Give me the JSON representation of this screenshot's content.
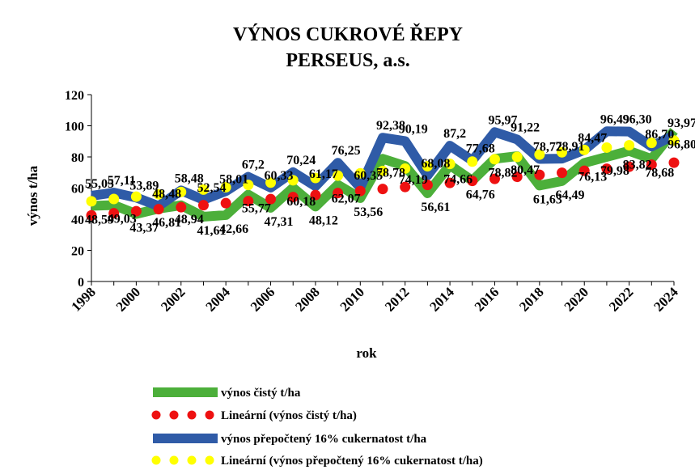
{
  "chart_data": {
    "type": "line",
    "title": "VÝNOS  CUKROVÉ  ŘEPY",
    "subtitle": "PERSEUS, a.s.",
    "xlabel": "rok",
    "ylabel": "výnos t/ha",
    "ylim": [
      0,
      120
    ],
    "yticks": [
      0,
      20,
      40,
      60,
      80,
      100,
      120
    ],
    "x": [
      1998,
      1999,
      2000,
      2001,
      2002,
      2003,
      2004,
      2005,
      2006,
      2007,
      2008,
      2009,
      2010,
      2011,
      2012,
      2013,
      2014,
      2015,
      2016,
      2017,
      2018,
      2019,
      2020,
      2021,
      2022,
      2023,
      2024
    ],
    "xtick_labels": [
      "1998",
      "2000",
      "2002",
      "2004",
      "2006",
      "2008",
      "2010",
      "2012",
      "2014",
      "2016",
      "2018",
      "2020",
      "2022",
      "2024"
    ],
    "grid": false,
    "legend_position": "bottom",
    "series": [
      {
        "name": "výnos čistý t/ha",
        "kind": "line",
        "color": "#4caf3a",
        "values": [
          48.59,
          49.03,
          43.37,
          46.81,
          48.94,
          41.61,
          42.66,
          55.77,
          47.31,
          60.18,
          48.12,
          62.07,
          53.56,
          78.78,
          74.19,
          56.61,
          74.66,
          64.76,
          78.82,
          80.47,
          61.63,
          64.49,
          76.13,
          79.98,
          83.82,
          78.68,
          96.8
        ],
        "labels": [
          "48,59",
          "49,03",
          "43,37",
          "46,81",
          "48,94",
          "41,61",
          "42,66",
          "55,77",
          "47,31",
          "60,18",
          "48,12",
          "62,07",
          "53,56",
          "78,78",
          "74,19",
          "56,61",
          "74,66",
          "64,76",
          "78,82",
          "80,47",
          "61,63",
          "64,49",
          "76,13",
          "79,98",
          "83,82",
          "78,68",
          "96,80"
        ]
      },
      {
        "name": "Lineární (výnos čistý t/ha)",
        "kind": "dots",
        "color": "#ee1111",
        "values": [
          42.5,
          43.8,
          45.1,
          46.4,
          47.7,
          49.0,
          50.3,
          51.6,
          52.9,
          54.2,
          55.5,
          56.8,
          58.1,
          59.4,
          60.7,
          62.0,
          63.3,
          64.6,
          65.9,
          67.2,
          68.5,
          69.8,
          71.1,
          72.4,
          73.7,
          75.0,
          76.3
        ]
      },
      {
        "name": "výnos přepočtený 16% cukernatost t/ha",
        "kind": "line",
        "color": "#2f5ba7",
        "values": [
          55.05,
          57.11,
          53.89,
          48.48,
          58.48,
          52.54,
          58.01,
          67.2,
          60.33,
          70.24,
          61.17,
          76.25,
          60.35,
          92.38,
          90.19,
          68.08,
          87.2,
          77.68,
          95.97,
          91.22,
          78.72,
          78.91,
          84.47,
          96.49,
          96.3,
          86.7,
          93.97
        ],
        "labels": [
          "55,05",
          "57,11",
          "53,89",
          "48,48",
          "58,48",
          "52,54",
          "58,01",
          "67,2",
          "60,33",
          "70,24",
          "61,17",
          "76,25",
          "60,35",
          "92,38",
          "90,19",
          "68,08",
          "87,2",
          "77,68",
          "95,97",
          "91,22",
          "78,72",
          "78,91",
          "84,47",
          "96,49",
          "96,30",
          "86,70",
          "93,97"
        ]
      },
      {
        "name": "Lineární (výnos přepočtený 16% cukernatost t/ha)",
        "kind": "dots",
        "color": "#ffff00",
        "values": [
          51.5,
          53.0,
          54.5,
          56.0,
          57.5,
          59.0,
          60.5,
          62.0,
          63.5,
          65.0,
          66.5,
          68.0,
          69.5,
          71.0,
          72.5,
          74.0,
          75.5,
          77.0,
          78.5,
          80.0,
          81.5,
          83.0,
          84.5,
          86.0,
          87.5,
          89.0,
          90.5
        ]
      }
    ]
  }
}
